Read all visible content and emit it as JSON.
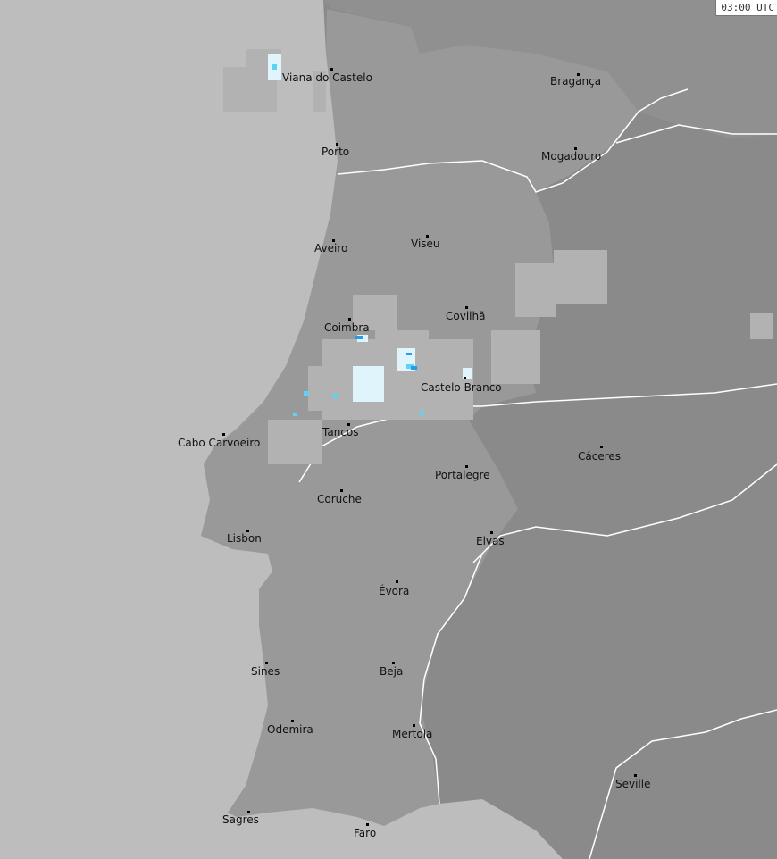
{
  "timestamp": "03:00 UTC",
  "colors": {
    "sea": "#bdbdbd",
    "portugal": "#999999",
    "spain": "#8a8a8a",
    "spain_north": "#8f8f8f",
    "radar_light": "#b2b2b2",
    "radar_white": "#dff4fb",
    "radar_cyan": "#5fd3f5",
    "radar_blue": "#2a9be8",
    "rivers": "#ffffff"
  },
  "cities": [
    {
      "name": "Viana do Castelo"
    },
    {
      "name": "Bragança"
    },
    {
      "name": "Porto"
    },
    {
      "name": "Mogadouro"
    },
    {
      "name": "Aveiro"
    },
    {
      "name": "Viseu"
    },
    {
      "name": "Coimbra"
    },
    {
      "name": "Covilhã"
    },
    {
      "name": "Castelo Branco"
    },
    {
      "name": "Tancos"
    },
    {
      "name": "Cabo Carvoeiro"
    },
    {
      "name": "Cáceres"
    },
    {
      "name": "Portalegre"
    },
    {
      "name": "Coruche"
    },
    {
      "name": "Lisbon"
    },
    {
      "name": "Elvas"
    },
    {
      "name": "Évora"
    },
    {
      "name": "Sines"
    },
    {
      "name": "Beja"
    },
    {
      "name": "Odemira"
    },
    {
      "name": "Mertola"
    },
    {
      "name": "Seville"
    },
    {
      "name": "Sagres"
    },
    {
      "name": "Faro"
    }
  ]
}
